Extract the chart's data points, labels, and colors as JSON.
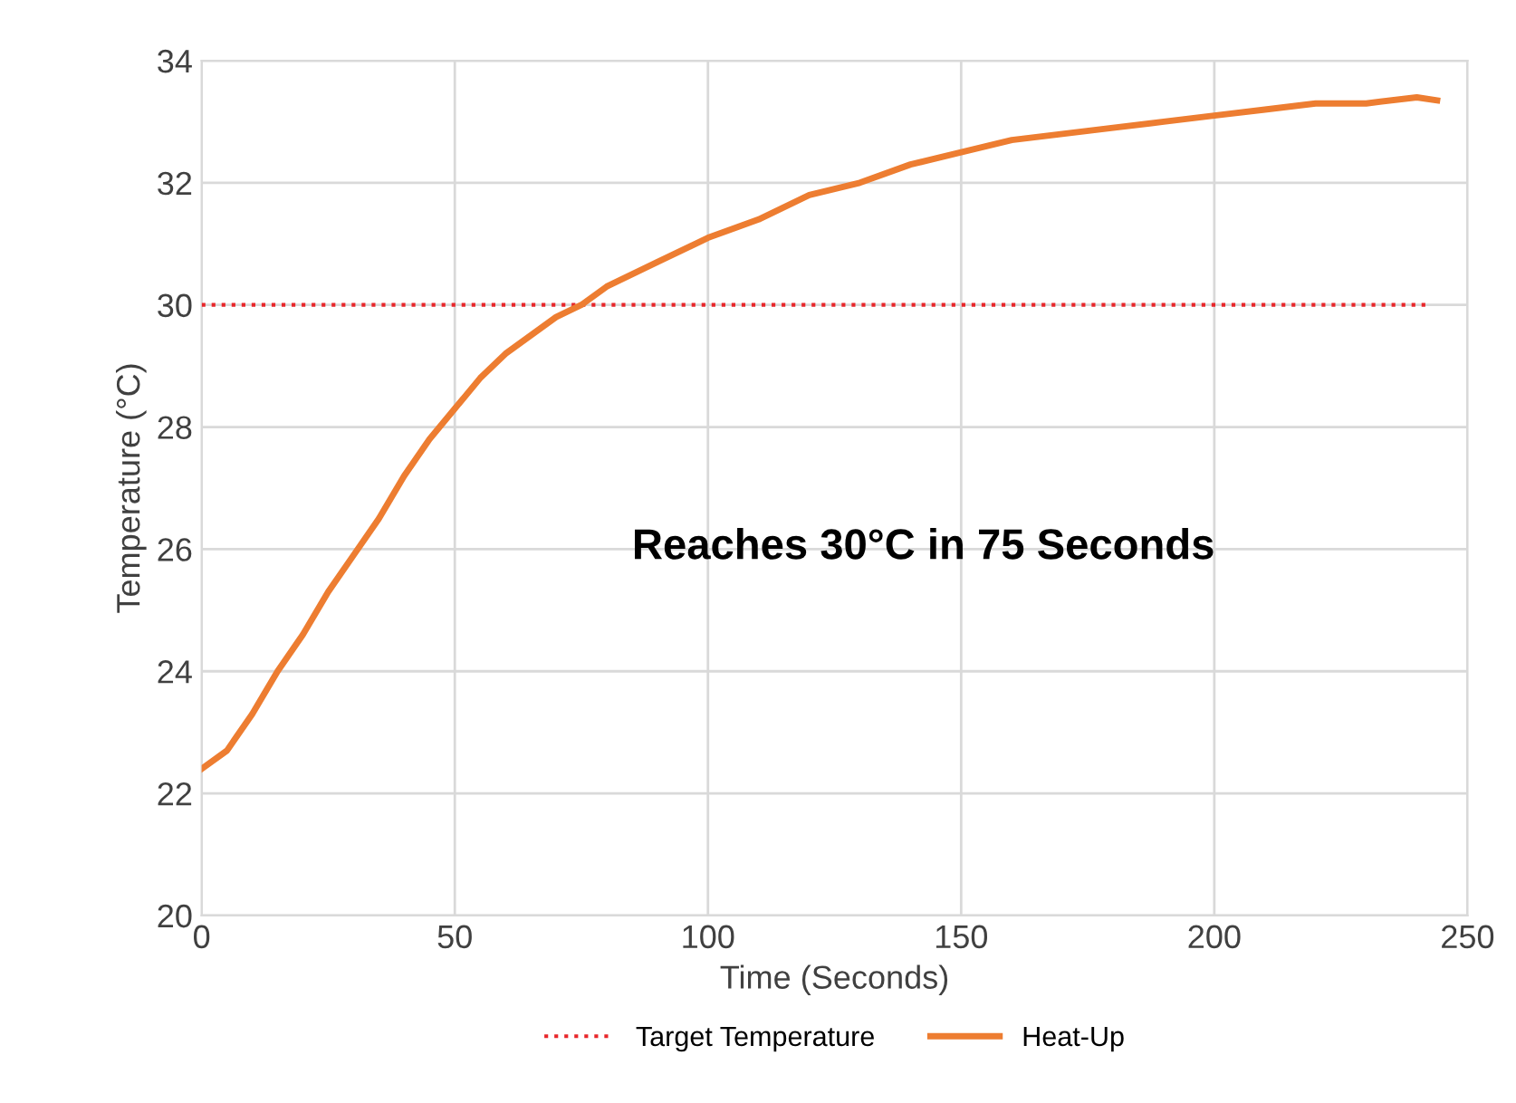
{
  "chart_data": {
    "type": "line",
    "xlabel": "Time (Seconds)",
    "ylabel": "Temperature (°C)",
    "xlim": [
      0,
      250
    ],
    "xticks": [
      0,
      50,
      100,
      150,
      200,
      250
    ],
    "ylim": [
      20,
      34
    ],
    "yticks": [
      20,
      22,
      24,
      26,
      28,
      30,
      32,
      34
    ],
    "grid": true,
    "legend": "bottom",
    "marker": "none",
    "series": [
      {
        "name": "Target Temperature",
        "color": "#e8262a",
        "line_style": "dotted",
        "x": [
          0,
          242
        ],
        "values": [
          30,
          30
        ]
      },
      {
        "name": "Heat-Up",
        "color": "#ed7d31",
        "line_style": "solid",
        "x": [
          0,
          5,
          10,
          15,
          20,
          25,
          30,
          35,
          40,
          45,
          50,
          55,
          60,
          65,
          70,
          75,
          80,
          90,
          100,
          110,
          120,
          130,
          140,
          150,
          160,
          170,
          180,
          190,
          200,
          210,
          220,
          230,
          240,
          244
        ],
        "values": [
          22.4,
          22.7,
          23.3,
          24.0,
          24.6,
          25.3,
          25.9,
          26.5,
          27.2,
          27.8,
          28.3,
          28.8,
          29.2,
          29.5,
          29.8,
          30.0,
          30.3,
          30.7,
          31.1,
          31.4,
          31.8,
          32.0,
          32.3,
          32.5,
          32.7,
          32.8,
          32.9,
          33.0,
          33.1,
          33.2,
          33.3,
          33.3,
          33.4,
          33.35
        ]
      }
    ],
    "annotations": [
      "Reaches 30°C in 75 Seconds"
    ]
  }
}
